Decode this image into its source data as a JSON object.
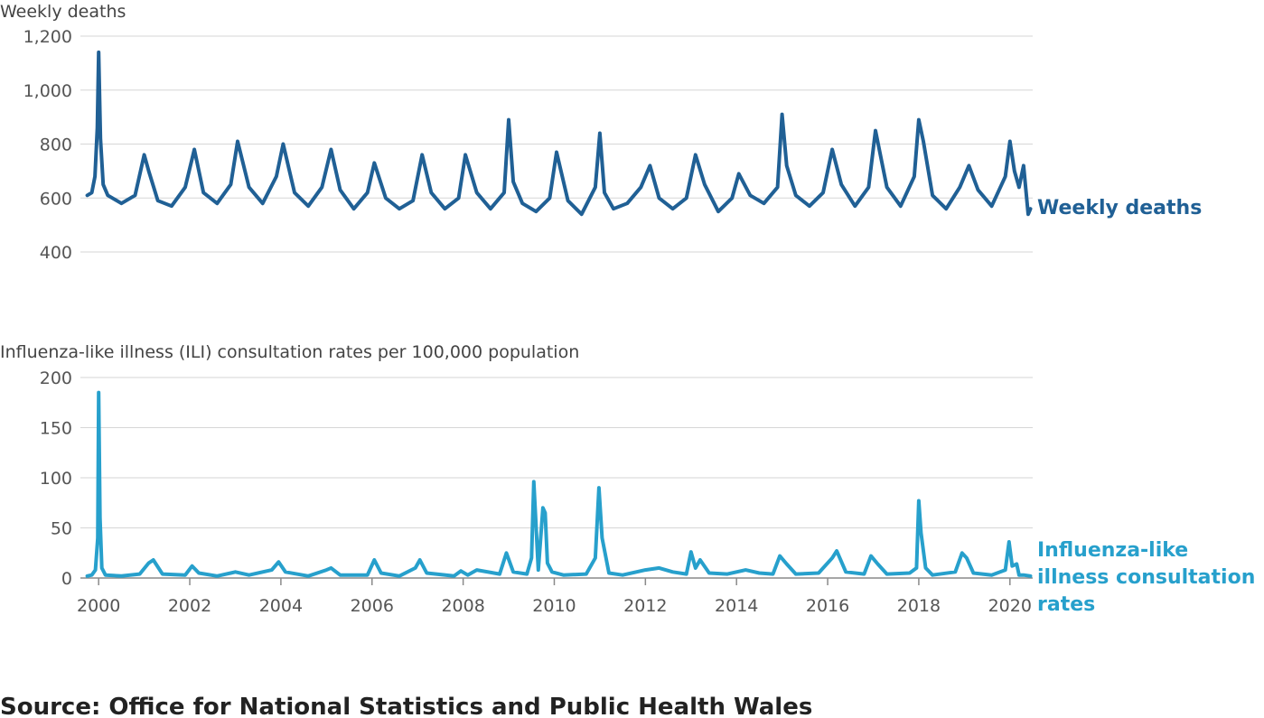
{
  "chart_data": [
    {
      "type": "line",
      "title": "Weekly deaths",
      "xlim": [
        1999.6,
        2020.5
      ],
      "ylim": [
        400,
        1200
      ],
      "yticks": [
        400,
        600,
        800,
        1000,
        1200
      ],
      "ytick_labels": [
        "400",
        "600",
        "800",
        "1,000",
        "1,200"
      ],
      "grid": true,
      "series": [
        {
          "name": "Weekly deaths",
          "color": "#206095",
          "x": [
            1999.75,
            1999.85,
            1999.92,
            1999.97,
            2000.0,
            2000.04,
            2000.1,
            2000.2,
            2000.5,
            2000.8,
            2001.0,
            2001.1,
            2001.3,
            2001.6,
            2001.9,
            2002.1,
            2002.3,
            2002.6,
            2002.9,
            2003.05,
            2003.3,
            2003.6,
            2003.9,
            2004.05,
            2004.3,
            2004.6,
            2004.9,
            2005.1,
            2005.3,
            2005.6,
            2005.9,
            2006.05,
            2006.3,
            2006.6,
            2006.9,
            2007.1,
            2007.3,
            2007.6,
            2007.9,
            2008.05,
            2008.3,
            2008.6,
            2008.9,
            2009.0,
            2009.1,
            2009.3,
            2009.6,
            2009.9,
            2010.05,
            2010.3,
            2010.6,
            2010.9,
            2011.0,
            2011.1,
            2011.3,
            2011.6,
            2011.9,
            2012.1,
            2012.3,
            2012.6,
            2012.9,
            2013.1,
            2013.3,
            2013.6,
            2013.9,
            2014.05,
            2014.3,
            2014.6,
            2014.9,
            2015.0,
            2015.1,
            2015.3,
            2015.6,
            2015.9,
            2016.1,
            2016.3,
            2016.6,
            2016.9,
            2017.05,
            2017.3,
            2017.6,
            2017.9,
            2018.0,
            2018.1,
            2018.3,
            2018.6,
            2018.9,
            2019.1,
            2019.3,
            2019.6,
            2019.9,
            2020.0,
            2020.1,
            2020.2,
            2020.3,
            2020.4,
            2020.45
          ],
          "y": [
            610,
            620,
            680,
            860,
            1140,
            820,
            650,
            610,
            580,
            610,
            760,
            700,
            590,
            570,
            640,
            780,
            620,
            580,
            650,
            810,
            640,
            580,
            680,
            800,
            620,
            570,
            640,
            780,
            630,
            560,
            620,
            730,
            600,
            560,
            590,
            760,
            620,
            560,
            600,
            760,
            620,
            560,
            620,
            890,
            660,
            580,
            550,
            600,
            770,
            590,
            540,
            640,
            840,
            620,
            560,
            580,
            640,
            720,
            600,
            560,
            600,
            760,
            650,
            550,
            600,
            690,
            610,
            580,
            640,
            910,
            720,
            610,
            570,
            620,
            780,
            650,
            570,
            640,
            850,
            640,
            570,
            680,
            890,
            810,
            610,
            560,
            640,
            720,
            630,
            570,
            680,
            810,
            700,
            640,
            720,
            540,
            560
          ]
        }
      ]
    },
    {
      "type": "line",
      "title": "Influenza-like illness (ILI) consultation rates per 100,000 population",
      "xlim": [
        1999.6,
        2020.5
      ],
      "ylim": [
        0,
        200
      ],
      "yticks": [
        0,
        50,
        100,
        150,
        200
      ],
      "ytick_labels": [
        "0",
        "50",
        "100",
        "150",
        "200"
      ],
      "xticks": [
        2000,
        2002,
        2004,
        2006,
        2008,
        2010,
        2012,
        2014,
        2016,
        2018,
        2020
      ],
      "xtick_labels": [
        "2000",
        "2002",
        "2004",
        "2006",
        "2008",
        "2010",
        "2012",
        "2014",
        "2016",
        "2018",
        "2020"
      ],
      "grid": true,
      "series": [
        {
          "name": "Influenza-like illness consultation rates",
          "color": "#27a0cc",
          "x": [
            1999.75,
            1999.85,
            1999.93,
            1999.98,
            2000.0,
            2000.03,
            2000.07,
            2000.15,
            2000.5,
            2000.9,
            2001.1,
            2001.2,
            2001.4,
            2001.9,
            2002.05,
            2002.2,
            2002.6,
            2002.9,
            2003.0,
            2003.3,
            2003.8,
            2003.95,
            2004.1,
            2004.6,
            2005.0,
            2005.1,
            2005.3,
            2005.9,
            2006.05,
            2006.2,
            2006.6,
            2006.95,
            2007.05,
            2007.2,
            2007.8,
            2007.95,
            2008.1,
            2008.3,
            2008.8,
            2008.95,
            2009.1,
            2009.4,
            2009.5,
            2009.55,
            2009.65,
            2009.75,
            2009.8,
            2009.85,
            2009.95,
            2010.2,
            2010.7,
            2010.9,
            2010.98,
            2011.05,
            2011.2,
            2011.5,
            2012.0,
            2012.3,
            2012.6,
            2012.9,
            2013.0,
            2013.1,
            2013.2,
            2013.4,
            2013.8,
            2014.0,
            2014.2,
            2014.5,
            2014.8,
            2014.95,
            2015.1,
            2015.3,
            2015.8,
            2016.1,
            2016.2,
            2016.4,
            2016.8,
            2016.95,
            2017.1,
            2017.3,
            2017.8,
            2017.95,
            2018.0,
            2018.05,
            2018.15,
            2018.3,
            2018.8,
            2018.95,
            2019.05,
            2019.2,
            2019.6,
            2019.9,
            2019.98,
            2020.05,
            2020.15,
            2020.2,
            2020.3,
            2020.45
          ],
          "y": [
            2,
            3,
            8,
            40,
            185,
            60,
            10,
            3,
            2,
            4,
            15,
            18,
            4,
            3,
            12,
            5,
            2,
            5,
            6,
            3,
            8,
            16,
            6,
            2,
            8,
            10,
            3,
            3,
            18,
            5,
            2,
            10,
            18,
            5,
            2,
            7,
            3,
            8,
            4,
            25,
            6,
            4,
            20,
            96,
            8,
            70,
            65,
            15,
            6,
            3,
            4,
            20,
            90,
            40,
            5,
            3,
            8,
            10,
            6,
            4,
            26,
            10,
            18,
            5,
            4,
            6,
            8,
            5,
            4,
            22,
            14,
            4,
            5,
            20,
            27,
            6,
            4,
            22,
            14,
            4,
            5,
            10,
            77,
            45,
            10,
            3,
            6,
            25,
            20,
            5,
            3,
            8,
            36,
            12,
            14,
            3,
            3,
            2
          ]
        }
      ]
    }
  ],
  "labels": {
    "deaths": "Weekly deaths",
    "ili": "Influenza-like illness consultation rates",
    "source": "Source: Office for National Statistics and Public Health Wales"
  }
}
